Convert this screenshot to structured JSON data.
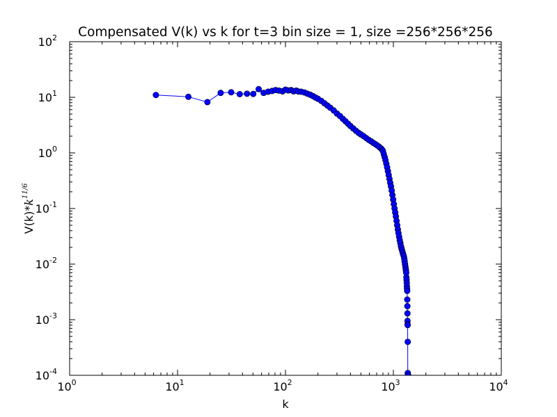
{
  "chart_data": {
    "type": "line",
    "title": "Compensated V(k) vs k for t=3 bin size = 1, size =256*256*256",
    "xlabel": "k",
    "ylabel": {
      "prefix": "V(k)*",
      "var": "k",
      "exp": "11/6"
    },
    "xscale": "log",
    "yscale": "log",
    "xlim": [
      1,
      10000
    ],
    "ylim": [
      0.0001,
      100
    ],
    "xticks": [
      {
        "base": "10",
        "exp": "0"
      },
      {
        "base": "10",
        "exp": "1"
      },
      {
        "base": "10",
        "exp": "2"
      },
      {
        "base": "10",
        "exp": "3"
      },
      {
        "base": "10",
        "exp": "4"
      }
    ],
    "yticks": [
      {
        "base": "10",
        "exp": "-4"
      },
      {
        "base": "10",
        "exp": "-3"
      },
      {
        "base": "10",
        "exp": "-2"
      },
      {
        "base": "10",
        "exp": "-1"
      },
      {
        "base": "10",
        "exp": "0"
      },
      {
        "base": "10",
        "exp": "1"
      },
      {
        "base": "10",
        "exp": "2"
      }
    ],
    "grid": false,
    "marker_color": "#0000ff",
    "line_color": "#0000ff",
    "series": [
      {
        "x": [
          6.3,
          12.6,
          18.9,
          25.1,
          31.4,
          37.7,
          44,
          50.3,
          56.5,
          62.8,
          69,
          75,
          81,
          87,
          94,
          100,
          106,
          113,
          119,
          126,
          132,
          140,
          150,
          160,
          170,
          180,
          190,
          200,
          215,
          230,
          245,
          260,
          280,
          300,
          320,
          340,
          360,
          380,
          400,
          425,
          450,
          475,
          500,
          530,
          560,
          590,
          620,
          650,
          680,
          710,
          740,
          770,
          790,
          800,
          815,
          830,
          845,
          860,
          875,
          890,
          905,
          920,
          935,
          950,
          965,
          980,
          995,
          1010,
          1025,
          1040,
          1055,
          1070,
          1085,
          1100,
          1115,
          1130,
          1145,
          1160,
          1175,
          1190,
          1205,
          1220,
          1235,
          1250,
          1262,
          1272,
          1282,
          1292,
          1300,
          1308,
          1315,
          1320,
          1325,
          1330,
          1334,
          1338,
          1342,
          1345,
          1348,
          1350,
          1352,
          1354,
          1356,
          1358,
          1360,
          1363,
          1370
        ],
        "y": [
          11,
          10.2,
          8.2,
          12,
          12.3,
          11.4,
          11.6,
          11.5,
          14,
          12,
          12.6,
          13,
          13.5,
          13.2,
          12.8,
          13.7,
          13.3,
          13.5,
          12.8,
          13.2,
          12.7,
          12.6,
          12.2,
          11.6,
          11.1,
          10.5,
          9.9,
          9.4,
          8.6,
          7.8,
          7.1,
          6.5,
          5.8,
          5.1,
          4.6,
          4.1,
          3.7,
          3.35,
          3.05,
          2.75,
          2.5,
          2.3,
          2.15,
          2.0,
          1.85,
          1.72,
          1.62,
          1.52,
          1.44,
          1.36,
          1.28,
          1.2,
          1.13,
          1.08,
          0.95,
          0.84,
          0.74,
          0.64,
          0.55,
          0.47,
          0.4,
          0.34,
          0.29,
          0.25,
          0.21,
          0.175,
          0.145,
          0.12,
          0.1,
          0.085,
          0.072,
          0.06,
          0.05,
          0.042,
          0.036,
          0.031,
          0.027,
          0.024,
          0.021,
          0.019,
          0.0175,
          0.016,
          0.0148,
          0.0138,
          0.0125,
          0.0112,
          0.01,
          0.009,
          0.0083,
          0.0076,
          0.007,
          0.0058,
          0.0052,
          0.0046,
          0.004,
          0.0036,
          0.0033,
          0.0023,
          0.00175,
          0.0013,
          0.00095,
          0.00082,
          0.0008,
          0.0004,
          0.00011,
          0.0001,
          0.0001
        ]
      }
    ]
  }
}
